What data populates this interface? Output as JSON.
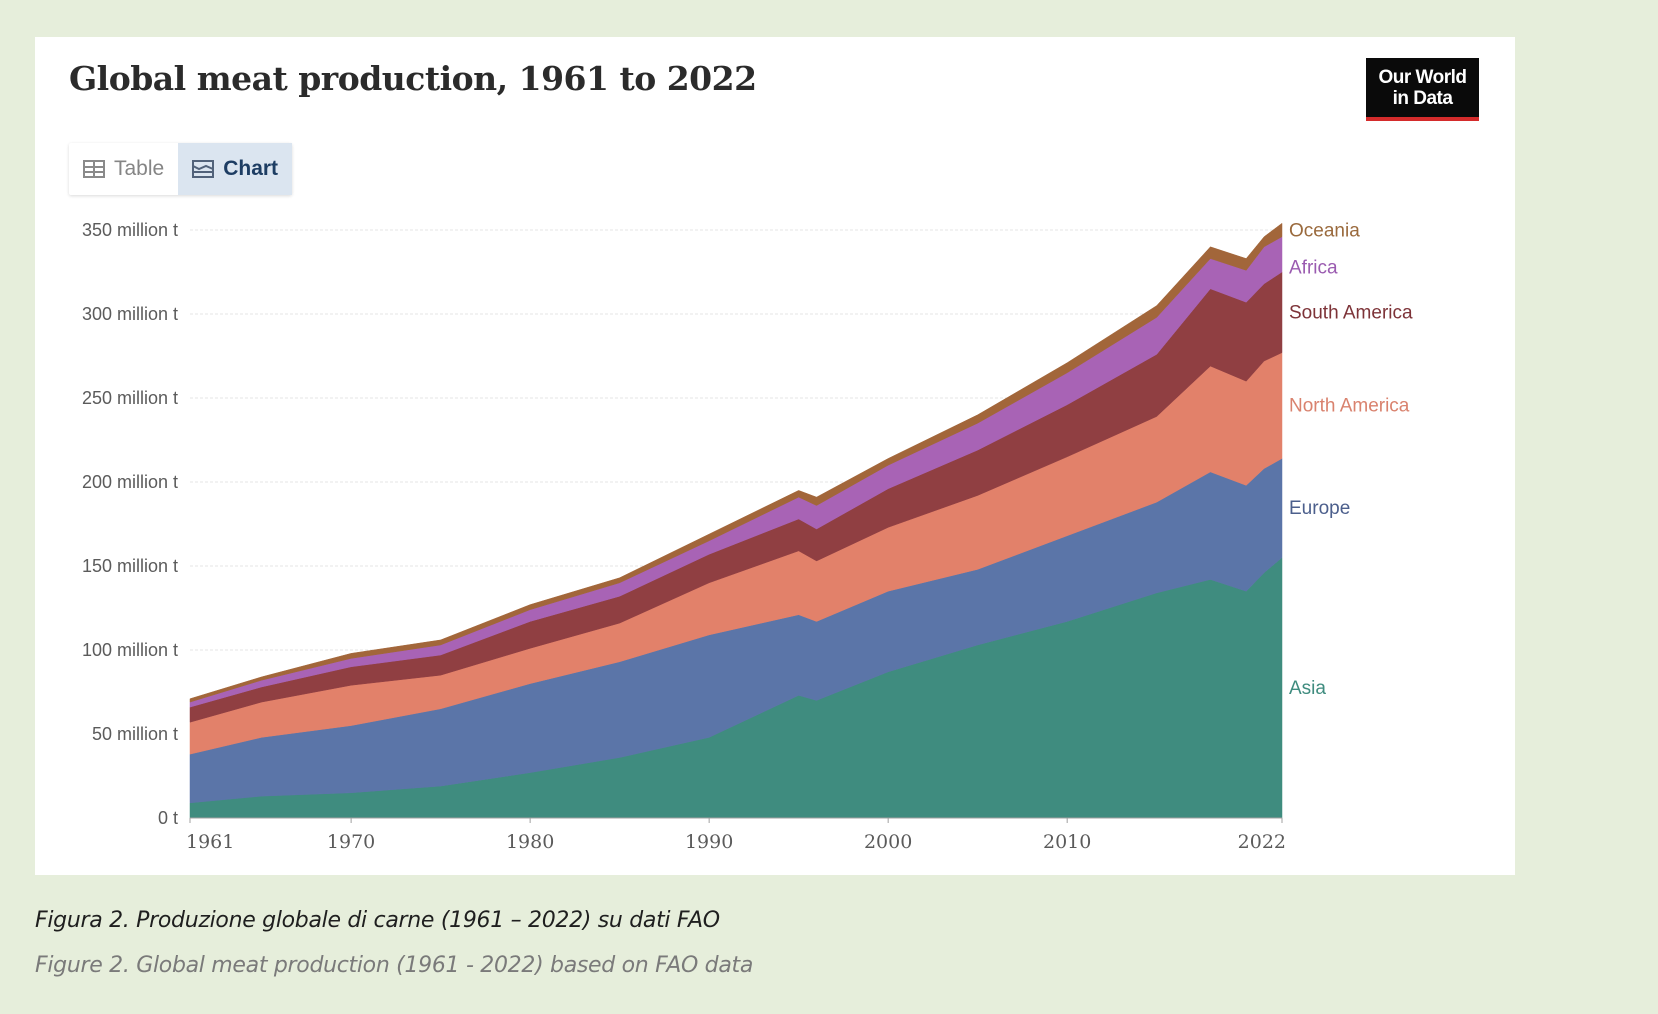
{
  "figure": {
    "title": "Global meat production, 1961 to 2022",
    "logo": {
      "line1": "Our World",
      "line2": "in Data"
    },
    "toggle": {
      "table_label": "Table",
      "chart_label": "Chart",
      "active": "Chart"
    },
    "caption_it": "Figura 2. Produzione globale di carne (1961 – 2022) su dati FAO",
    "caption_en": "Figure 2. Global meat production (1961 - 2022) based on FAO data"
  },
  "chart_data": {
    "type": "area",
    "stacked": true,
    "title": "Global meat production, 1961 to 2022",
    "xlabel": "",
    "ylabel": "",
    "unit": "million t",
    "x": [
      1961,
      1965,
      1970,
      1975,
      1980,
      1985,
      1990,
      1995,
      1996,
      2000,
      2005,
      2010,
      2015,
      2018,
      2020,
      2021,
      2022
    ],
    "xlim": [
      1961,
      2022
    ],
    "ylim": [
      0,
      350
    ],
    "x_ticks": [
      "1961",
      "1970",
      "1980",
      "1990",
      "2000",
      "2010",
      "2022"
    ],
    "x_tick_values": [
      1961,
      1970,
      1980,
      1990,
      2000,
      2010,
      2022
    ],
    "y_ticks": [
      "0 t",
      "50 million t",
      "100 million t",
      "150 million t",
      "200 million t",
      "250 million t",
      "300 million t",
      "350 million t"
    ],
    "y_tick_values": [
      0,
      50,
      100,
      150,
      200,
      250,
      300,
      350
    ],
    "grid": true,
    "legend_placement": "right (inline labels)",
    "series": [
      {
        "name": "Asia",
        "color": "#3f8c7f",
        "label_color": "#3f8c7f",
        "values": [
          9,
          13,
          15,
          19,
          27,
          36,
          48,
          73,
          70,
          87,
          103,
          117,
          134,
          142,
          135,
          146,
          155
        ]
      },
      {
        "name": "Europe",
        "color": "#5b75a8",
        "label_color": "#4c5f8c",
        "values": [
          29,
          35,
          40,
          46,
          53,
          57,
          61,
          48,
          47,
          48,
          45,
          51,
          54,
          64,
          63,
          62,
          59
        ]
      },
      {
        "name": "North America",
        "color": "#e2816a",
        "label_color": "#d9826e",
        "values": [
          19,
          21,
          24,
          20,
          21,
          23,
          31,
          38,
          36,
          38,
          44,
          47,
          51,
          63,
          62,
          64,
          63
        ]
      },
      {
        "name": "South America",
        "color": "#903f42",
        "label_color": "#7d3338",
        "values": [
          9,
          9,
          11,
          12,
          16,
          16,
          17,
          19,
          19,
          23,
          27,
          31,
          37,
          46,
          47,
          46,
          48
        ]
      },
      {
        "name": "Africa",
        "color": "#a863b5",
        "label_color": "#9a5bb0",
        "values": [
          3,
          4,
          5,
          6,
          7,
          8,
          8,
          13,
          14,
          14,
          16,
          19,
          22,
          18,
          19,
          22,
          21
        ]
      },
      {
        "name": "Oceania",
        "color": "#a2663a",
        "label_color": "#9a6a3d",
        "values": [
          2,
          2,
          3,
          3,
          3,
          3,
          4,
          4,
          5,
          4,
          5,
          6,
          7,
          7,
          7,
          6,
          8
        ]
      }
    ]
  }
}
